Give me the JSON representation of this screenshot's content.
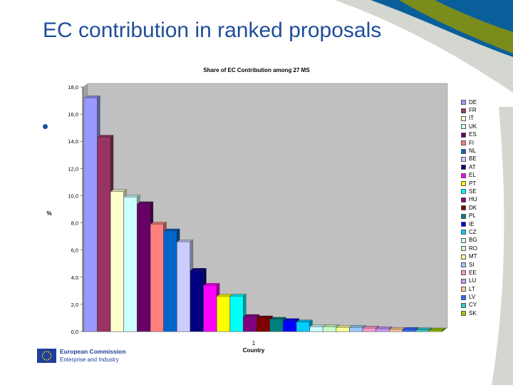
{
  "slide": {
    "title": "EC contribution in ranked proposals",
    "footer_line1": "European Commission",
    "footer_line2": "Enterprise and Industry"
  },
  "colors": {
    "title": "#1f4e9a",
    "plot_bg": "#c0c0c0",
    "swoosh_blue": "#0a5f9a",
    "swoosh_green": "#7a8c1c",
    "swoosh_grey": "#d4d6d0"
  },
  "chart_data": {
    "type": "bar",
    "title": "Share of EC Contribution among 27 MS",
    "xlabel": "Country",
    "ylabel": "%",
    "category_tick": "1",
    "ylim": [
      0,
      18
    ],
    "yticks": [
      "0,0",
      "2,0",
      "4,0",
      "6,0",
      "8,0",
      "10,0",
      "12,0",
      "14,0",
      "16,0",
      "18,0"
    ],
    "grid": false,
    "legend_position": "right",
    "series": [
      {
        "name": "DE",
        "value": 17.2,
        "color": "#9999ff"
      },
      {
        "name": "FR",
        "value": 14.3,
        "color": "#993366"
      },
      {
        "name": "IT",
        "value": 10.3,
        "color": "#ffffcc"
      },
      {
        "name": "UK",
        "value": 9.9,
        "color": "#ccffff"
      },
      {
        "name": "ES",
        "value": 9.4,
        "color": "#660066"
      },
      {
        "name": "FI",
        "value": 7.9,
        "color": "#ff8080"
      },
      {
        "name": "NL",
        "value": 7.4,
        "color": "#0066cc"
      },
      {
        "name": "BE",
        "value": 6.6,
        "color": "#ccccff"
      },
      {
        "name": "AT",
        "value": 4.5,
        "color": "#000080"
      },
      {
        "name": "EL",
        "value": 3.4,
        "color": "#ff00ff"
      },
      {
        "name": "PT",
        "value": 2.6,
        "color": "#ffff00"
      },
      {
        "name": "SE",
        "value": 2.6,
        "color": "#00ffff"
      },
      {
        "name": "HU",
        "value": 1.1,
        "color": "#800080"
      },
      {
        "name": "DK",
        "value": 1.0,
        "color": "#800000"
      },
      {
        "name": "PL",
        "value": 0.9,
        "color": "#008080"
      },
      {
        "name": "IE",
        "value": 0.8,
        "color": "#0000ff"
      },
      {
        "name": "CZ",
        "value": 0.7,
        "color": "#00ccff"
      },
      {
        "name": "BG",
        "value": 0.35,
        "color": "#ccffff"
      },
      {
        "name": "RO",
        "value": 0.35,
        "color": "#ccffcc"
      },
      {
        "name": "MT",
        "value": 0.3,
        "color": "#ffff99"
      },
      {
        "name": "SI",
        "value": 0.3,
        "color": "#99ccff"
      },
      {
        "name": "EE",
        "value": 0.25,
        "color": "#ff99cc"
      },
      {
        "name": "LU",
        "value": 0.2,
        "color": "#cc99ff"
      },
      {
        "name": "LT",
        "value": 0.15,
        "color": "#ffcc99"
      },
      {
        "name": "LV",
        "value": 0.15,
        "color": "#3366ff"
      },
      {
        "name": "CY",
        "value": 0.12,
        "color": "#33cccc"
      },
      {
        "name": "SK",
        "value": 0.1,
        "color": "#99cc00"
      }
    ]
  }
}
